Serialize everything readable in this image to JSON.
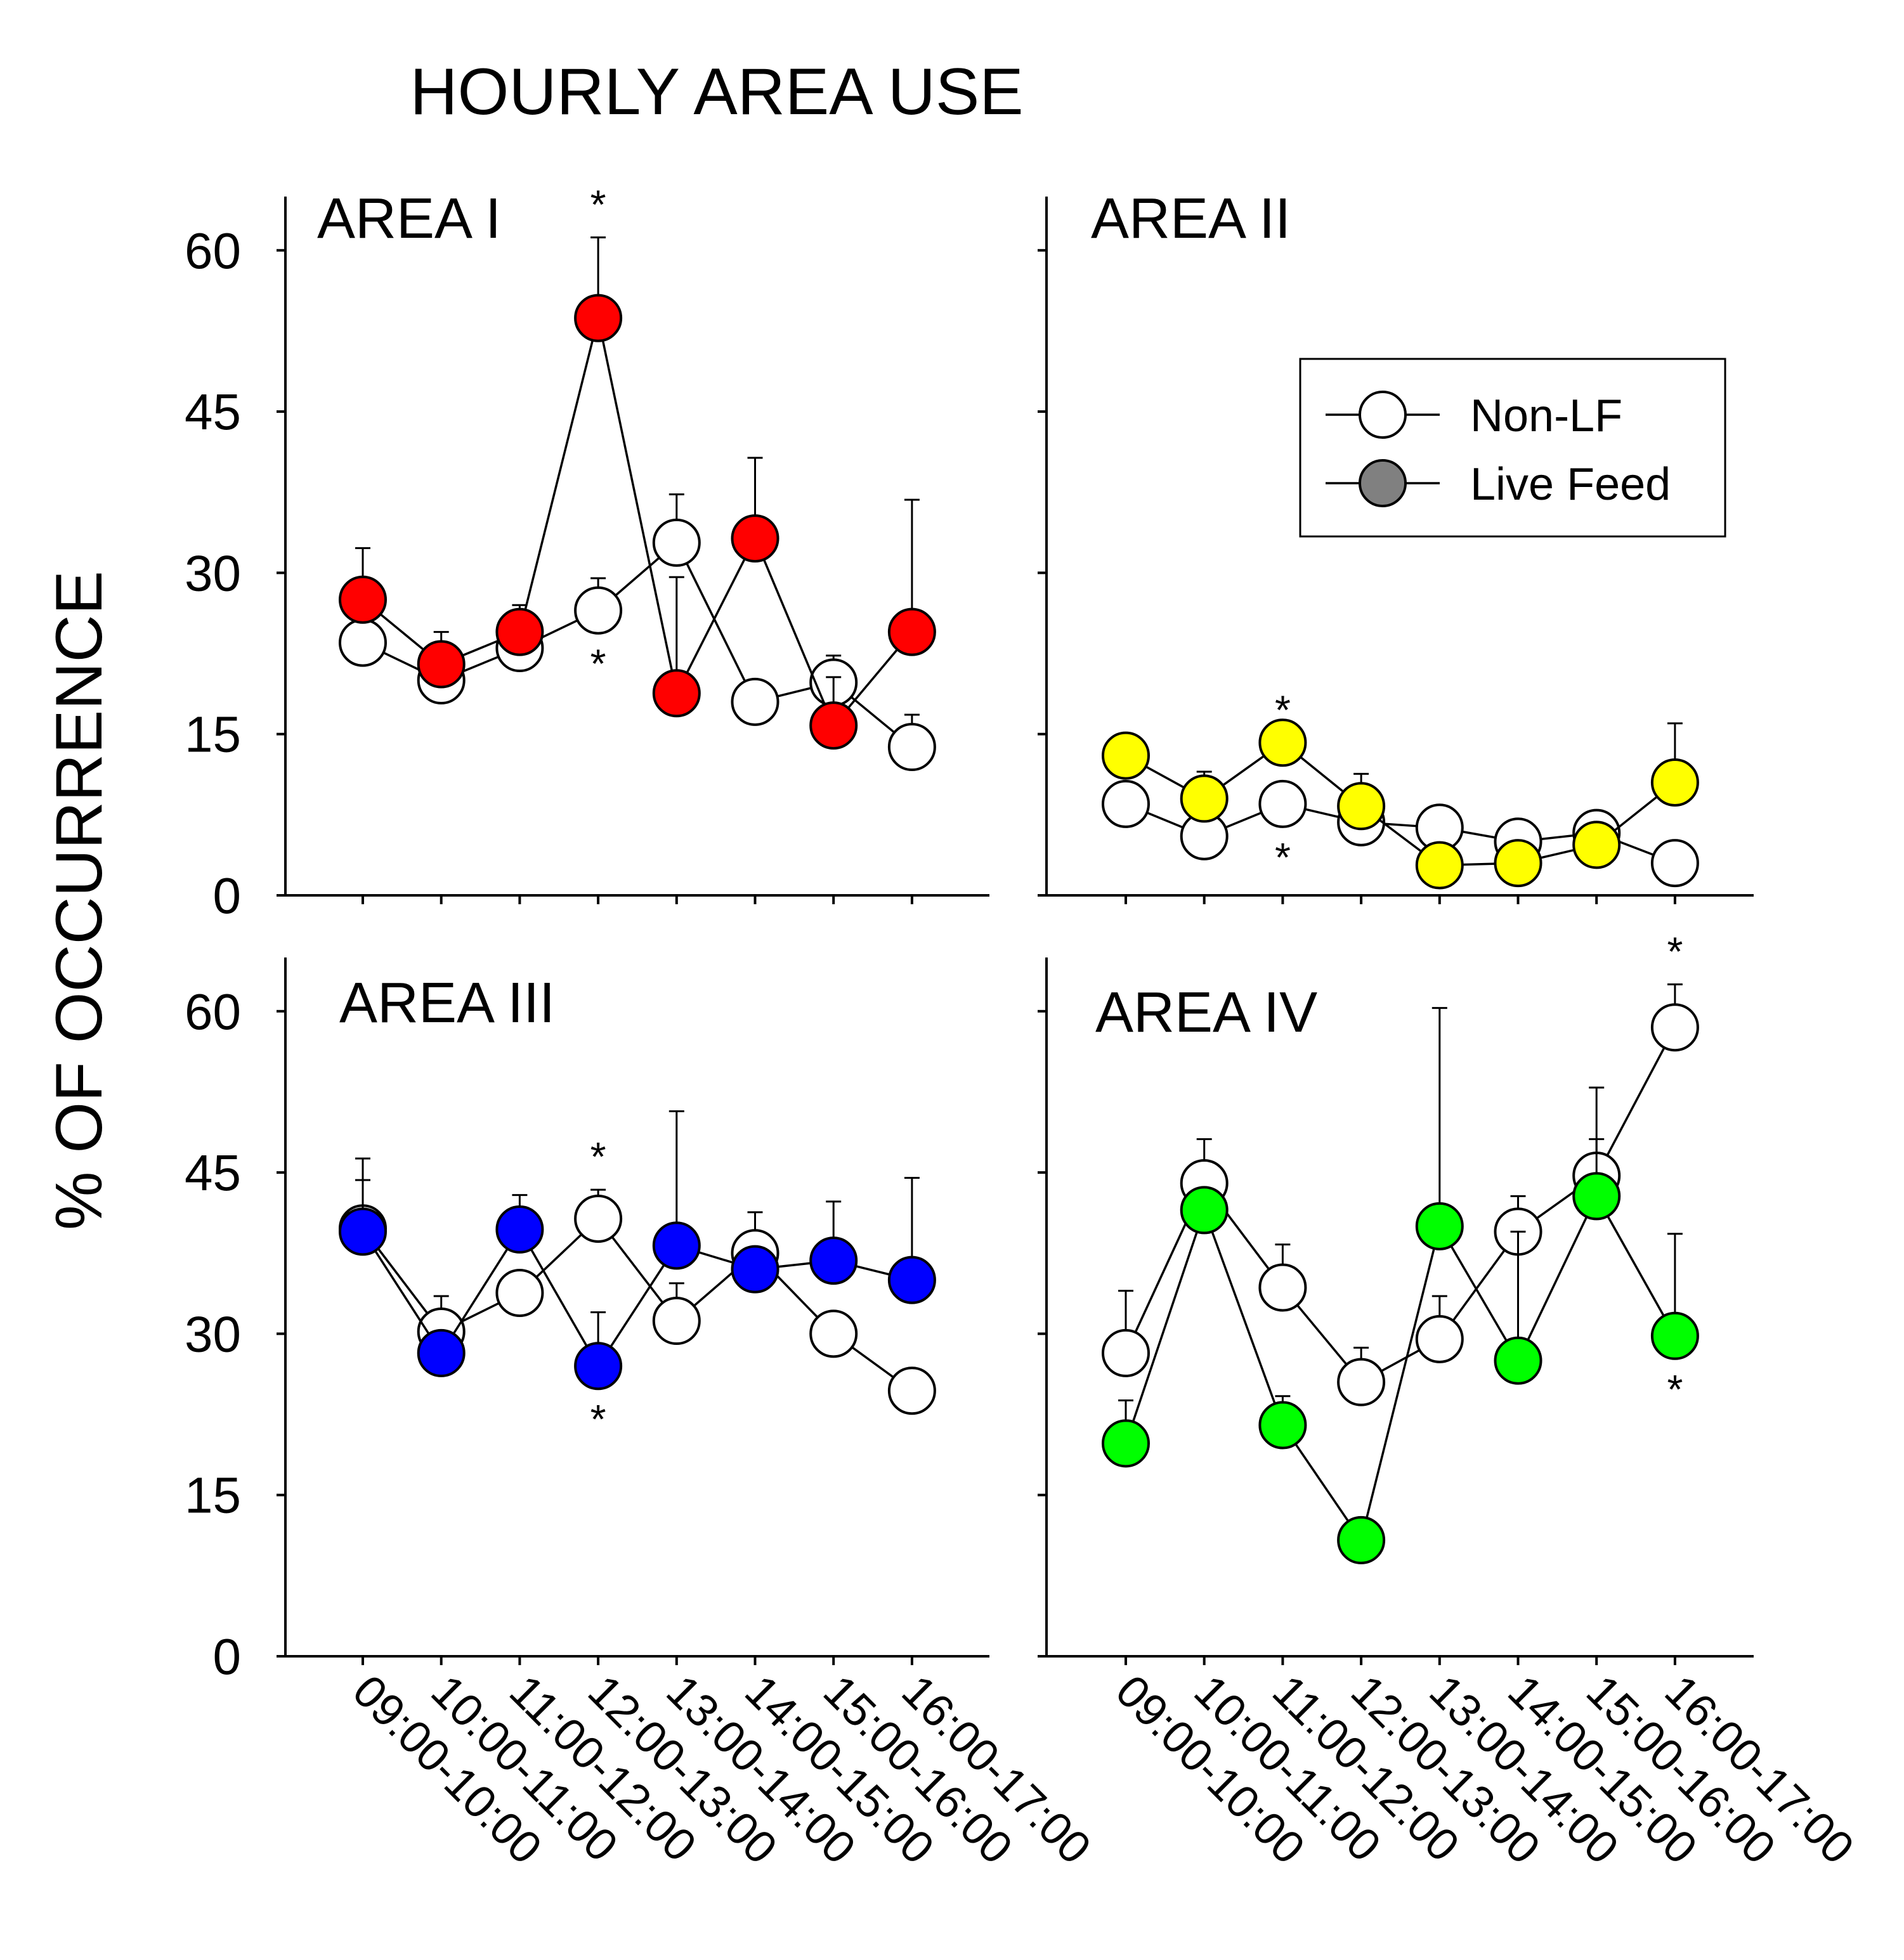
{
  "chart_data": {
    "title": "HOURLY AREA USE",
    "ylabel": "% OF OCCURRENCE",
    "type": "line",
    "ylim": [
      0,
      65
    ],
    "yticks": [
      0,
      15,
      30,
      45,
      60
    ],
    "categories": [
      "09:00-10:00",
      "10:00-11:00",
      "11:00-12:00",
      "12:00-13:00",
      "13:00-14:00",
      "14:00-15:00",
      "15:00-16:00",
      "16:00-17:00"
    ],
    "legend": [
      {
        "name": "Non-LF",
        "fill": "#ffffff"
      },
      {
        "name": "Live Feed",
        "fill": "#808080"
      }
    ],
    "legend_panel": 1,
    "panels": [
      {
        "label": "AREA I",
        "color": "#ff0000",
        "series": [
          {
            "name": "Non-LF",
            "values": [
              23.5,
              20.0,
              23.0,
              26.5,
              32.8,
              18.0,
              19.8,
              13.8
            ],
            "err": [
              0,
              0,
              0,
              3.0,
              4.5,
              0,
              2.5,
              3.0
            ]
          },
          {
            "name": "Live Feed",
            "values": [
              27.5,
              21.5,
              24.5,
              53.7,
              18.8,
              33.2,
              15.8,
              24.5
            ],
            "err": [
              4.8,
              3.0,
              2.5,
              7.5,
              10.8,
              7.5,
              4.5,
              12.3
            ]
          }
        ],
        "stars": [
          {
            "index": 3,
            "position": "above",
            "text": "*"
          },
          {
            "index": 3,
            "position": "below",
            "text": "*"
          }
        ]
      },
      {
        "label": "AREA II",
        "color": "#ffff00",
        "series": [
          {
            "name": "Non-LF",
            "values": [
              8.5,
              5.5,
              8.5,
              6.8,
              6.3,
              5.0,
              5.8,
              3.0
            ],
            "err": [
              0,
              0,
              0,
              0,
              0,
              0,
              0.5,
              0
            ]
          },
          {
            "name": "Live Feed",
            "values": [
              13.0,
              9.0,
              14.2,
              8.3,
              2.8,
              3.0,
              4.7,
              10.5
            ],
            "err": [
              2.0,
              2.5,
              0,
              3.0,
              0,
              0,
              0,
              5.5
            ]
          }
        ],
        "stars": [
          {
            "index": 2,
            "position": "above",
            "text": "*"
          },
          {
            "index": 2,
            "position": "below",
            "text": "*"
          }
        ]
      },
      {
        "label": "AREA III",
        "color": "#0000ff",
        "series": [
          {
            "name": "Non-LF",
            "values": [
              39.8,
              30.2,
              33.8,
              40.7,
              31.2,
              37.5,
              30.0,
              24.7
            ],
            "err": [
              4.5,
              3.3,
              0,
              2.7,
              3.5,
              3.8,
              0,
              0
            ]
          },
          {
            "name": "Live Feed",
            "values": [
              39.5,
              28.2,
              39.7,
              27.0,
              38.2,
              36.0,
              36.8,
              35.0
            ],
            "err": [
              6.8,
              0,
              3.2,
              5.0,
              12.5,
              0,
              5.5,
              9.5
            ]
          }
        ],
        "stars": [
          {
            "index": 3,
            "position": "above",
            "text": "*"
          },
          {
            "index": 3,
            "position": "below",
            "text": "*"
          }
        ]
      },
      {
        "label": "AREA IV",
        "color": "#00ff00",
        "series": [
          {
            "name": "Non-LF",
            "values": [
              28.2,
              44.0,
              34.3,
              25.5,
              29.5,
              39.5,
              44.7,
              58.5
            ],
            "err": [
              5.8,
              4.1,
              4.0,
              3.2,
              4.0,
              3.3,
              8.2,
              4.0
            ]
          },
          {
            "name": "Live Feed",
            "values": [
              19.8,
              41.5,
              21.5,
              10.8,
              40.0,
              27.5,
              42.8,
              29.8
            ],
            "err": [
              4.0,
              0,
              2.7,
              0,
              20.3,
              12.0,
              5.3,
              9.5
            ]
          }
        ],
        "stars": [
          {
            "index": 7,
            "position": "above",
            "text": "*"
          },
          {
            "index": 7,
            "position": "below",
            "text": "*"
          }
        ]
      }
    ]
  }
}
